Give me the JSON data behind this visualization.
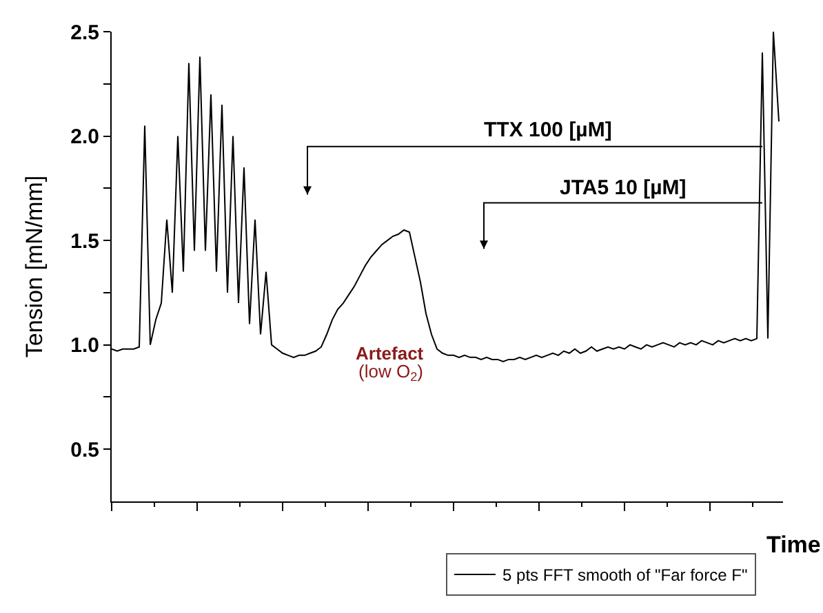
{
  "chart_data": {
    "type": "line",
    "ylabel": "Tension [mN/mm]",
    "xlabel": "Time",
    "categories": [
      null,
      null,
      null,
      null,
      null,
      null,
      null,
      null,
      null,
      null,
      null,
      null,
      null,
      null,
      null,
      null,
      null,
      null,
      null,
      null,
      null,
      null,
      null,
      null,
      null,
      null,
      null,
      null,
      null,
      null,
      null,
      null,
      null,
      null,
      null,
      null,
      null,
      null,
      null,
      null,
      null,
      null,
      null,
      null,
      null,
      null,
      null,
      null,
      null,
      null,
      null,
      null,
      null,
      null,
      null,
      null,
      null,
      null,
      null,
      null,
      null,
      null,
      null,
      null,
      null,
      null,
      null,
      null,
      null,
      null,
      null,
      null,
      null,
      null,
      null,
      null,
      null,
      null,
      null,
      null,
      null,
      null,
      null,
      null,
      null,
      null,
      null,
      null,
      null,
      null,
      null,
      null,
      null,
      null,
      null,
      null,
      null,
      null,
      null,
      null,
      null,
      null,
      null,
      null,
      null,
      null,
      null,
      null,
      null,
      null,
      null,
      null,
      null,
      null,
      null,
      null,
      null,
      null,
      null,
      null,
      null,
      null
    ],
    "series": [
      {
        "name": "5 pts FFT smooth of \"Far force F\"",
        "color": "#000000",
        "values": [
          0.98,
          0.97,
          0.98,
          0.98,
          0.98,
          0.99,
          2.05,
          1.0,
          1.12,
          1.2,
          1.6,
          1.25,
          2.0,
          1.35,
          2.35,
          1.45,
          2.38,
          1.45,
          2.2,
          1.35,
          2.15,
          1.25,
          2.0,
          1.2,
          1.85,
          1.1,
          1.6,
          1.05,
          1.35,
          1.0,
          0.98,
          0.96,
          0.95,
          0.94,
          0.95,
          0.95,
          0.96,
          0.97,
          0.99,
          1.05,
          1.12,
          1.17,
          1.2,
          1.24,
          1.28,
          1.33,
          1.38,
          1.42,
          1.45,
          1.48,
          1.5,
          1.52,
          1.53,
          1.55,
          1.54,
          1.42,
          1.3,
          1.15,
          1.05,
          0.98,
          0.96,
          0.95,
          0.95,
          0.94,
          0.95,
          0.94,
          0.94,
          0.93,
          0.94,
          0.93,
          0.93,
          0.92,
          0.93,
          0.93,
          0.94,
          0.93,
          0.94,
          0.95,
          0.94,
          0.95,
          0.96,
          0.95,
          0.97,
          0.96,
          0.98,
          0.96,
          0.97,
          0.99,
          0.97,
          0.98,
          0.99,
          0.98,
          0.99,
          0.98,
          1.0,
          0.99,
          0.98,
          1.0,
          0.99,
          1.0,
          1.01,
          1.0,
          0.99,
          1.01,
          1.0,
          1.01,
          1.0,
          1.02,
          1.01,
          1.0,
          1.02,
          1.01,
          1.02,
          1.03,
          1.02,
          1.03,
          1.02,
          1.03,
          2.4,
          1.03,
          2.5,
          2.07
        ]
      }
    ],
    "ylim": [
      0.25,
      2.5
    ],
    "yticks": [
      0.5,
      {
        "value": 0.75,
        "label": null
      },
      {
        "value": 1,
        "label": "1.0"
      },
      {
        "value": 1.25,
        "label": null
      },
      1.5,
      {
        "value": 1.75,
        "label": null
      },
      {
        "value": 2,
        "label": "2.0"
      },
      {
        "value": 2.25,
        "label": null
      },
      2.5
    ],
    "tick_labels": "y",
    "legend": "bottom",
    "marker": "none",
    "line_style": "solid",
    "annotations": [
      "TTX 100 [µM]",
      "JTA5 10 [µM]",
      "Artefact",
      "(low O$_{2}$)"
    ]
  }
}
